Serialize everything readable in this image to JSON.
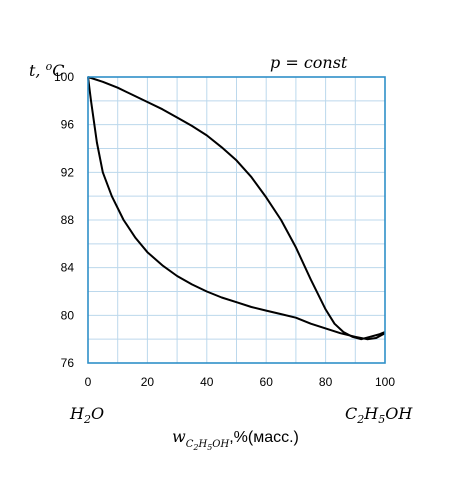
{
  "chart_data": {
    "type": "line",
    "title": "p = const",
    "ylabel": "t, °C",
    "xlabel": "w, %(масс.)",
    "x_left_label": "H₂O",
    "x_right_label": "C₂H₅OH",
    "xlim": [
      0,
      100
    ],
    "ylim": [
      76,
      100
    ],
    "xticks": [
      0,
      20,
      40,
      60,
      80,
      100
    ],
    "yticks": [
      76,
      80,
      84,
      88,
      92,
      96,
      100
    ],
    "grid": true,
    "colors": {
      "grid": "#bcd8ec",
      "frame": "#2f8fc8",
      "curve": "#000000"
    },
    "series": [
      {
        "points": [
          [
            0,
            100
          ],
          [
            1,
            98
          ],
          [
            3,
            94.5
          ],
          [
            5,
            92
          ],
          [
            8,
            90
          ],
          [
            12,
            88
          ],
          [
            16,
            86.5
          ],
          [
            20,
            85.3
          ],
          [
            25,
            84.2
          ],
          [
            30,
            83.3
          ],
          [
            35,
            82.6
          ],
          [
            40,
            82
          ],
          [
            45,
            81.5
          ],
          [
            50,
            81.1
          ],
          [
            55,
            80.7
          ],
          [
            60,
            80.4
          ],
          [
            65,
            80.1
          ],
          [
            70,
            79.8
          ],
          [
            75,
            79.3
          ],
          [
            80,
            78.9
          ],
          [
            85,
            78.5
          ],
          [
            90,
            78.2
          ],
          [
            94,
            78
          ],
          [
            97,
            78.1
          ],
          [
            100,
            78.5
          ]
        ]
      },
      {
        "points": [
          [
            0,
            100
          ],
          [
            5,
            99.6
          ],
          [
            10,
            99.1
          ],
          [
            15,
            98.5
          ],
          [
            20,
            97.9
          ],
          [
            25,
            97.3
          ],
          [
            30,
            96.6
          ],
          [
            35,
            95.9
          ],
          [
            40,
            95.1
          ],
          [
            45,
            94.1
          ],
          [
            50,
            93
          ],
          [
            55,
            91.6
          ],
          [
            60,
            89.9
          ],
          [
            65,
            88
          ],
          [
            70,
            85.7
          ],
          [
            75,
            83
          ],
          [
            80,
            80.5
          ],
          [
            83,
            79.3
          ],
          [
            86,
            78.6
          ],
          [
            89,
            78.2
          ],
          [
            92,
            78
          ],
          [
            95,
            78.2
          ],
          [
            98,
            78.4
          ],
          [
            100,
            78.6
          ]
        ]
      }
    ]
  }
}
